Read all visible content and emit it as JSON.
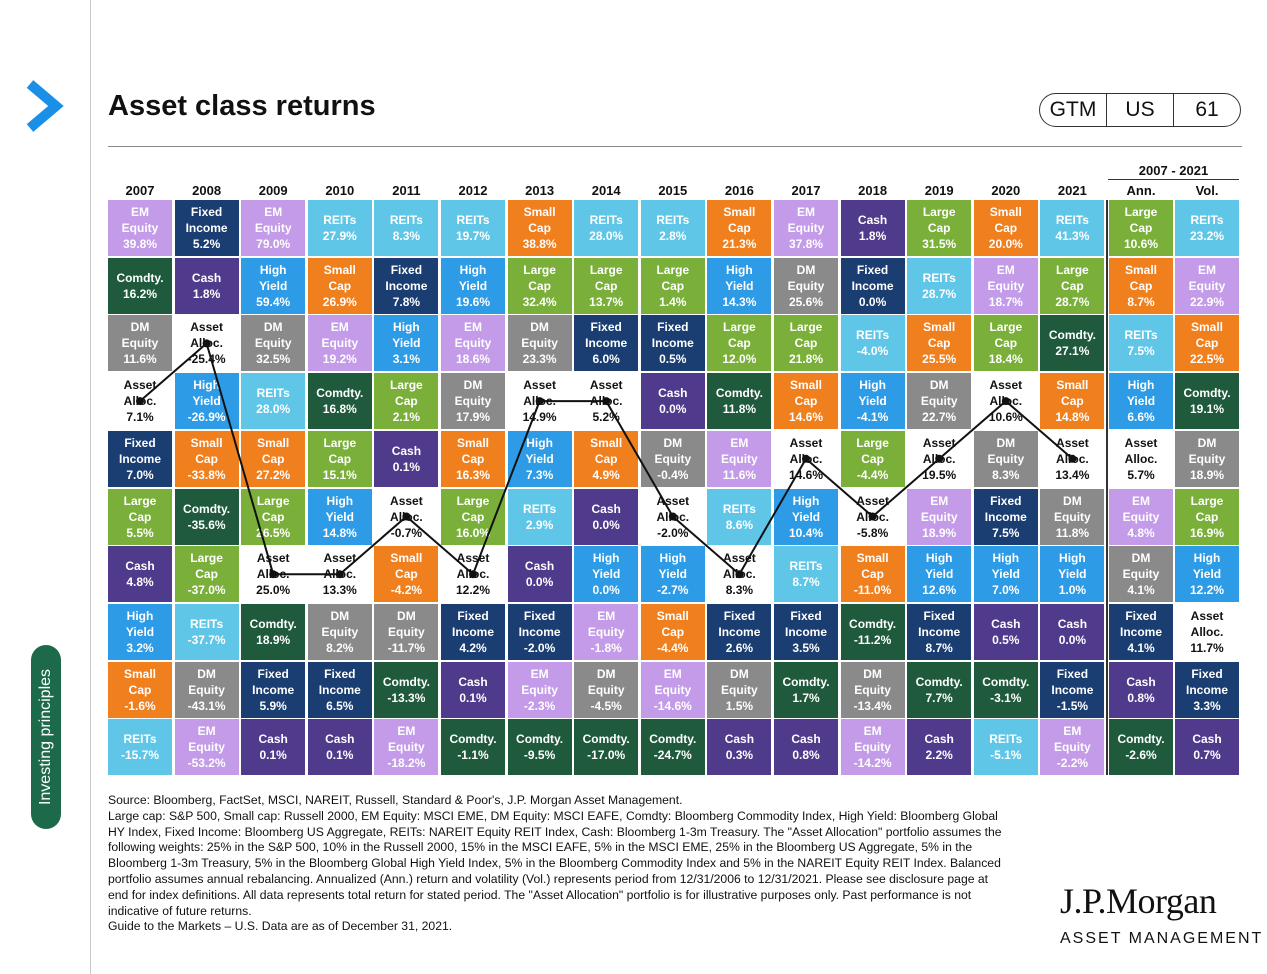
{
  "header": {
    "title": "Asset class returns",
    "badge": [
      "GTM",
      "US",
      "61"
    ]
  },
  "sidebar": {
    "label": "Investing principles"
  },
  "colors": {
    "Asset Alloc.": "#ffffff",
    "Cash": "#4f3a8c",
    "Comdty.": "#1f5a3c",
    "DM Equity": "#8a8a8a",
    "EM Equity": "#c39be8",
    "Fixed Income": "#1a3d72",
    "High Yield": "#2e9be6",
    "Large Cap": "#7ab03a",
    "REITs": "#5fc6e8",
    "Small Cap": "#f07f1e"
  },
  "chart_data": {
    "type": "table",
    "title": "Asset class returns",
    "years": [
      "2007",
      "2008",
      "2009",
      "2010",
      "2011",
      "2012",
      "2013",
      "2014",
      "2015",
      "2016",
      "2017",
      "2018",
      "2019",
      "2020",
      "2021"
    ],
    "summary_header": "2007 - 2021",
    "summary_columns": [
      "Ann.",
      "Vol."
    ],
    "columns": [
      [
        [
          "EM Equity",
          "39.8%"
        ],
        [
          "Comdty.",
          "16.2%"
        ],
        [
          "DM Equity",
          "11.6%"
        ],
        [
          "Asset Alloc.",
          "7.1%"
        ],
        [
          "Fixed Income",
          "7.0%"
        ],
        [
          "Large Cap",
          "5.5%"
        ],
        [
          "Cash",
          "4.8%"
        ],
        [
          "High Yield",
          "3.2%"
        ],
        [
          "Small Cap",
          "-1.6%"
        ],
        [
          "REITs",
          "-15.7%"
        ]
      ],
      [
        [
          "Fixed Income",
          "5.2%"
        ],
        [
          "Cash",
          "1.8%"
        ],
        [
          "Asset Alloc.",
          "-25.4%"
        ],
        [
          "High Yield",
          "-26.9%"
        ],
        [
          "Small Cap",
          "-33.8%"
        ],
        [
          "Comdty.",
          "-35.6%"
        ],
        [
          "Large Cap",
          "-37.0%"
        ],
        [
          "REITs",
          "-37.7%"
        ],
        [
          "DM Equity",
          "-43.1%"
        ],
        [
          "EM Equity",
          "-53.2%"
        ]
      ],
      [
        [
          "EM Equity",
          "79.0%"
        ],
        [
          "High Yield",
          "59.4%"
        ],
        [
          "DM Equity",
          "32.5%"
        ],
        [
          "REITs",
          "28.0%"
        ],
        [
          "Small Cap",
          "27.2%"
        ],
        [
          "Large Cap",
          "26.5%"
        ],
        [
          "Asset Alloc.",
          "25.0%"
        ],
        [
          "Comdty.",
          "18.9%"
        ],
        [
          "Fixed Income",
          "5.9%"
        ],
        [
          "Cash",
          "0.1%"
        ]
      ],
      [
        [
          "REITs",
          "27.9%"
        ],
        [
          "Small Cap",
          "26.9%"
        ],
        [
          "EM Equity",
          "19.2%"
        ],
        [
          "Comdty.",
          "16.8%"
        ],
        [
          "Large Cap",
          "15.1%"
        ],
        [
          "High Yield",
          "14.8%"
        ],
        [
          "Asset Alloc.",
          "13.3%"
        ],
        [
          "DM Equity",
          "8.2%"
        ],
        [
          "Fixed Income",
          "6.5%"
        ],
        [
          "Cash",
          "0.1%"
        ]
      ],
      [
        [
          "REITs",
          "8.3%"
        ],
        [
          "Fixed Income",
          "7.8%"
        ],
        [
          "High Yield",
          "3.1%"
        ],
        [
          "Large Cap",
          "2.1%"
        ],
        [
          "Cash",
          "0.1%"
        ],
        [
          "Asset Alloc.",
          "-0.7%"
        ],
        [
          "Small Cap",
          "-4.2%"
        ],
        [
          "DM Equity",
          "-11.7%"
        ],
        [
          "Comdty.",
          "-13.3%"
        ],
        [
          "EM Equity",
          "-18.2%"
        ]
      ],
      [
        [
          "REITs",
          "19.7%"
        ],
        [
          "High Yield",
          "19.6%"
        ],
        [
          "EM Equity",
          "18.6%"
        ],
        [
          "DM Equity",
          "17.9%"
        ],
        [
          "Small Cap",
          "16.3%"
        ],
        [
          "Large Cap",
          "16.0%"
        ],
        [
          "Asset Alloc.",
          "12.2%"
        ],
        [
          "Fixed Income",
          "4.2%"
        ],
        [
          "Cash",
          "0.1%"
        ],
        [
          "Comdty.",
          "-1.1%"
        ]
      ],
      [
        [
          "Small Cap",
          "38.8%"
        ],
        [
          "Large Cap",
          "32.4%"
        ],
        [
          "DM Equity",
          "23.3%"
        ],
        [
          "Asset Alloc.",
          "14.9%"
        ],
        [
          "High Yield",
          "7.3%"
        ],
        [
          "REITs",
          "2.9%"
        ],
        [
          "Cash",
          "0.0%"
        ],
        [
          "Fixed Income",
          "-2.0%"
        ],
        [
          "EM Equity",
          "-2.3%"
        ],
        [
          "Comdty.",
          "-9.5%"
        ]
      ],
      [
        [
          "REITs",
          "28.0%"
        ],
        [
          "Large Cap",
          "13.7%"
        ],
        [
          "Fixed Income",
          "6.0%"
        ],
        [
          "Asset Alloc.",
          "5.2%"
        ],
        [
          "Small Cap",
          "4.9%"
        ],
        [
          "Cash",
          "0.0%"
        ],
        [
          "High Yield",
          "0.0%"
        ],
        [
          "EM Equity",
          "-1.8%"
        ],
        [
          "DM Equity",
          "-4.5%"
        ],
        [
          "Comdty.",
          "-17.0%"
        ]
      ],
      [
        [
          "REITs",
          "2.8%"
        ],
        [
          "Large Cap",
          "1.4%"
        ],
        [
          "Fixed Income",
          "0.5%"
        ],
        [
          "Cash",
          "0.0%"
        ],
        [
          "DM Equity",
          "-0.4%"
        ],
        [
          "Asset Alloc.",
          "-2.0%"
        ],
        [
          "High Yield",
          "-2.7%"
        ],
        [
          "Small Cap",
          "-4.4%"
        ],
        [
          "EM Equity",
          "-14.6%"
        ],
        [
          "Comdty.",
          "-24.7%"
        ]
      ],
      [
        [
          "Small Cap",
          "21.3%"
        ],
        [
          "High Yield",
          "14.3%"
        ],
        [
          "Large Cap",
          "12.0%"
        ],
        [
          "Comdty.",
          "11.8%"
        ],
        [
          "EM Equity",
          "11.6%"
        ],
        [
          "REITs",
          "8.6%"
        ],
        [
          "Asset Alloc.",
          "8.3%"
        ],
        [
          "Fixed Income",
          "2.6%"
        ],
        [
          "DM Equity",
          "1.5%"
        ],
        [
          "Cash",
          "0.3%"
        ]
      ],
      [
        [
          "EM Equity",
          "37.8%"
        ],
        [
          "DM Equity",
          "25.6%"
        ],
        [
          "Large Cap",
          "21.8%"
        ],
        [
          "Small Cap",
          "14.6%"
        ],
        [
          "Asset Alloc.",
          "14.6%"
        ],
        [
          "High Yield",
          "10.4%"
        ],
        [
          "REITs",
          "8.7%"
        ],
        [
          "Fixed Income",
          "3.5%"
        ],
        [
          "Comdty.",
          "1.7%"
        ],
        [
          "Cash",
          "0.8%"
        ]
      ],
      [
        [
          "Cash",
          "1.8%"
        ],
        [
          "Fixed Income",
          "0.0%"
        ],
        [
          "REITs",
          "-4.0%"
        ],
        [
          "High Yield",
          "-4.1%"
        ],
        [
          "Large Cap",
          "-4.4%"
        ],
        [
          "Asset Alloc.",
          "-5.8%"
        ],
        [
          "Small Cap",
          "-11.0%"
        ],
        [
          "Comdty.",
          "-11.2%"
        ],
        [
          "DM Equity",
          "-13.4%"
        ],
        [
          "EM Equity",
          "-14.2%"
        ]
      ],
      [
        [
          "Large Cap",
          "31.5%"
        ],
        [
          "REITs",
          "28.7%"
        ],
        [
          "Small Cap",
          "25.5%"
        ],
        [
          "DM Equity",
          "22.7%"
        ],
        [
          "Asset Alloc.",
          "19.5%"
        ],
        [
          "EM Equity",
          "18.9%"
        ],
        [
          "High Yield",
          "12.6%"
        ],
        [
          "Fixed Income",
          "8.7%"
        ],
        [
          "Comdty.",
          "7.7%"
        ],
        [
          "Cash",
          "2.2%"
        ]
      ],
      [
        [
          "Small Cap",
          "20.0%"
        ],
        [
          "EM Equity",
          "18.7%"
        ],
        [
          "Large Cap",
          "18.4%"
        ],
        [
          "Asset Alloc.",
          "10.6%"
        ],
        [
          "DM Equity",
          "8.3%"
        ],
        [
          "Fixed Income",
          "7.5%"
        ],
        [
          "High Yield",
          "7.0%"
        ],
        [
          "Cash",
          "0.5%"
        ],
        [
          "Comdty.",
          "-3.1%"
        ],
        [
          "REITs",
          "-5.1%"
        ]
      ],
      [
        [
          "REITs",
          "41.3%"
        ],
        [
          "Large Cap",
          "28.7%"
        ],
        [
          "Comdty.",
          "27.1%"
        ],
        [
          "Small Cap",
          "14.8%"
        ],
        [
          "Asset Alloc.",
          "13.4%"
        ],
        [
          "DM Equity",
          "11.8%"
        ],
        [
          "High Yield",
          "1.0%"
        ],
        [
          "Cash",
          "0.0%"
        ],
        [
          "Fixed Income",
          "-1.5%"
        ],
        [
          "EM Equity",
          "-2.2%"
        ]
      ],
      [
        [
          "Large Cap",
          "10.6%"
        ],
        [
          "Small Cap",
          "8.7%"
        ],
        [
          "REITs",
          "7.5%"
        ],
        [
          "High Yield",
          "6.6%"
        ],
        [
          "Asset Alloc.",
          "5.7%"
        ],
        [
          "EM Equity",
          "4.8%"
        ],
        [
          "DM Equity",
          "4.1%"
        ],
        [
          "Fixed Income",
          "4.1%"
        ],
        [
          "Cash",
          "0.8%"
        ],
        [
          "Comdty.",
          "-2.6%"
        ]
      ],
      [
        [
          "REITs",
          "23.2%"
        ],
        [
          "EM Equity",
          "22.9%"
        ],
        [
          "Small Cap",
          "22.5%"
        ],
        [
          "Comdty.",
          "19.1%"
        ],
        [
          "DM Equity",
          "18.9%"
        ],
        [
          "Large Cap",
          "16.9%"
        ],
        [
          "High Yield",
          "12.2%"
        ],
        [
          "Asset Alloc.",
          "11.7%"
        ],
        [
          "Fixed Income",
          "3.3%"
        ],
        [
          "Cash",
          "0.7%"
        ]
      ]
    ]
  },
  "footer": {
    "source": "Source: Bloomberg, FactSet, MSCI, NAREIT, Russell, Standard & Poor's, J.P. Morgan Asset Management.",
    "notes": "Large cap: S&P 500, Small cap: Russell 2000, EM Equity: MSCI EME, DM Equity: MSCI EAFE, Comdty: Bloomberg Commodity Index, High Yield: Bloomberg Global HY Index, Fixed Income: Bloomberg US Aggregate, REITs: NAREIT Equity REIT Index, Cash: Bloomberg 1-3m Treasury. The \"Asset Allocation\" portfolio assumes the following weights: 25% in the S&P 500, 10% in the Russell 2000, 15% in the MSCI EAFE, 5% in the MSCI EME, 25% in the Bloomberg US Aggregate, 5% in the Bloomberg 1-3m Treasury, 5% in the Bloomberg Global High Yield Index, 5% in the Bloomberg Commodity Index and 5% in the NAREIT Equity REIT Index. Balanced portfolio assumes annual rebalancing. Annualized (Ann.) return and volatility (Vol.) represents period from 12/31/2006 to 12/31/2021. Please see disclosure page at end for index definitions. All data represents total return for stated period. The \"Asset Allocation\" portfolio is for illustrative purposes only. Past performance is not indicative of future returns.",
    "date": "Guide to the Markets – U.S. Data are as of December 31, 2021."
  },
  "logo": {
    "brand": "J.P.Morgan",
    "sub": "ASSET MANAGEMENT"
  }
}
